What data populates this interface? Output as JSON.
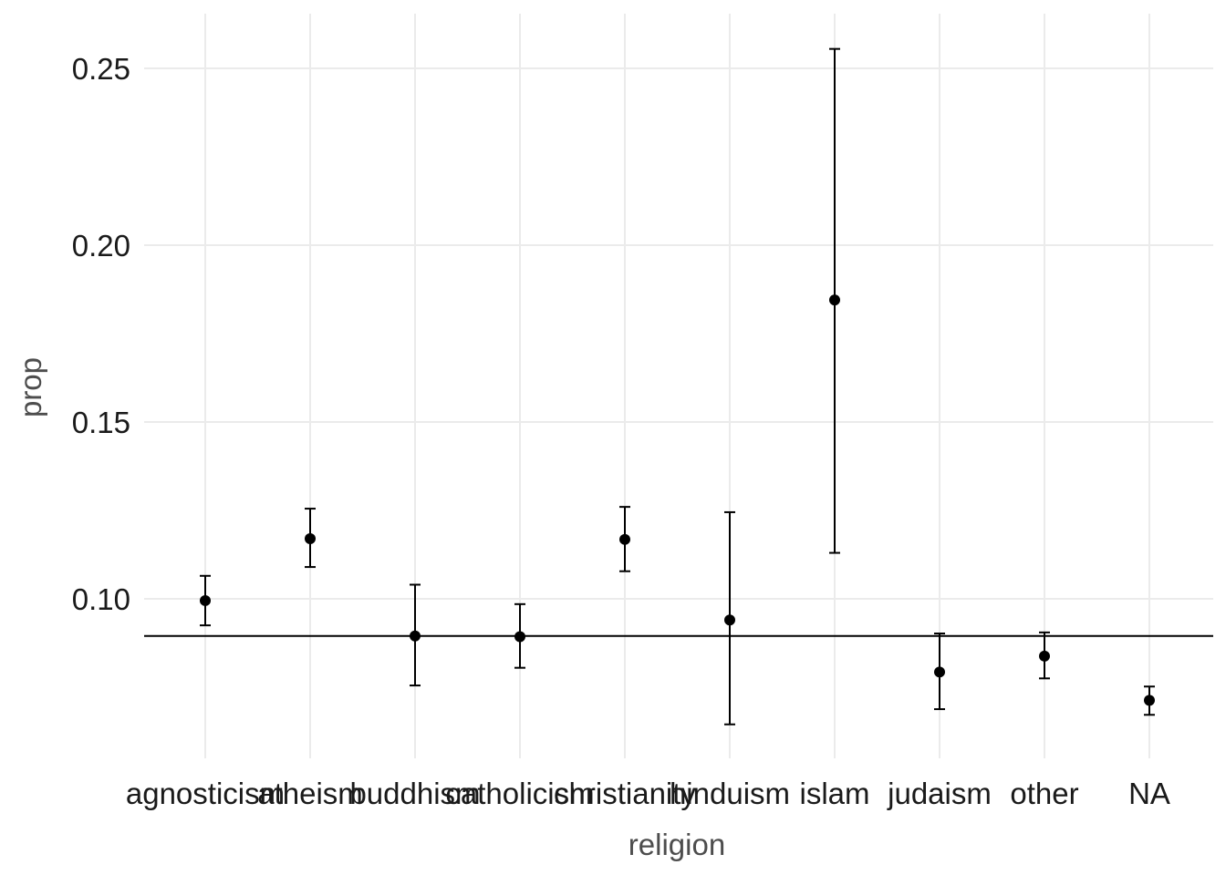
{
  "chart_data": {
    "type": "scatter",
    "title": "",
    "xlabel": "religion",
    "ylabel": "prop",
    "ylim": [
      0.055,
      0.26
    ],
    "yticks": [
      0.1,
      0.15,
      0.2,
      0.25
    ],
    "ytick_labels": [
      "0.10",
      "0.15",
      "0.20",
      "0.25"
    ],
    "grid": true,
    "legend": "none",
    "reference_line": {
      "orientation": "horizontal",
      "y": 0.0895,
      "color": "#000000"
    },
    "categories": [
      "agnosticism",
      "atheism",
      "buddhism",
      "catholicism",
      "christianity",
      "hinduism",
      "islam",
      "judaism",
      "other",
      "NA"
    ],
    "points": [
      {
        "category": "agnosticism",
        "y": 0.0995,
        "ymin": 0.0925,
        "ymax": 0.1065
      },
      {
        "category": "atheism",
        "y": 0.117,
        "ymin": 0.109,
        "ymax": 0.1255
      },
      {
        "category": "buddhism",
        "y": 0.0895,
        "ymin": 0.0755,
        "ymax": 0.104
      },
      {
        "category": "catholicism",
        "y": 0.0893,
        "ymin": 0.0805,
        "ymax": 0.0985
      },
      {
        "category": "christianity",
        "y": 0.1168,
        "ymin": 0.1078,
        "ymax": 0.126
      },
      {
        "category": "hinduism",
        "y": 0.094,
        "ymin": 0.0645,
        "ymax": 0.1245
      },
      {
        "category": "islam",
        "y": 0.1845,
        "ymin": 0.113,
        "ymax": 0.2555
      },
      {
        "category": "judaism",
        "y": 0.0793,
        "ymin": 0.0688,
        "ymax": 0.0902
      },
      {
        "category": "other",
        "y": 0.0838,
        "ymin": 0.0775,
        "ymax": 0.0905
      },
      {
        "category": "NA",
        "y": 0.0713,
        "ymin": 0.0672,
        "ymax": 0.0752
      }
    ],
    "colors": {
      "point": "#000000",
      "grid": "#ebebeb",
      "axis_title": "#4d4d4d",
      "tick_label": "#1a1a1a"
    }
  }
}
